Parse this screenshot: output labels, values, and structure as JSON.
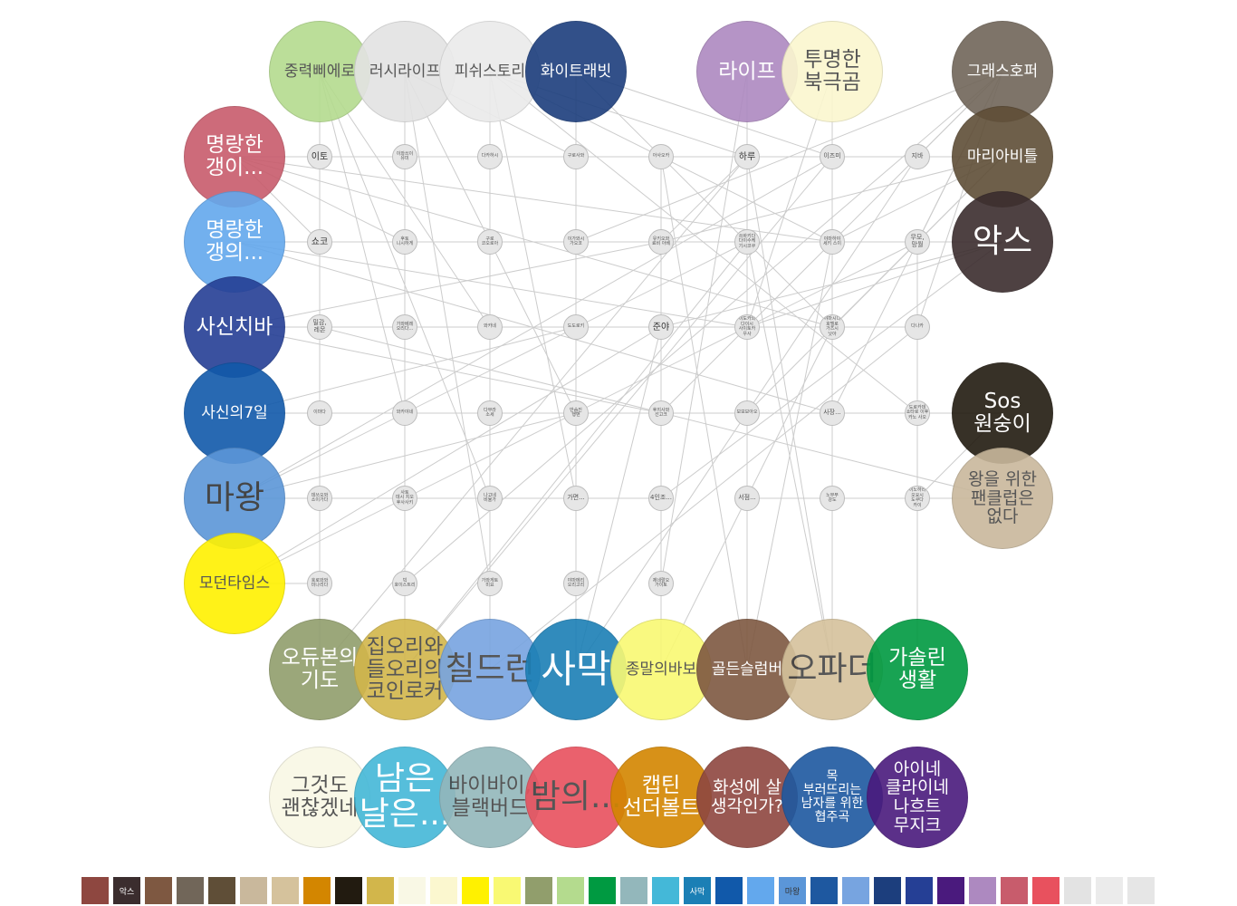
{
  "top_nodes": [
    {
      "label": "중력삐에로",
      "color": "#b4db8e",
      "text": "#444444",
      "size": "m"
    },
    {
      "label": "러시라이프",
      "color": "#e3e3e3",
      "text": "#444444",
      "size": "m"
    },
    {
      "label": "피쉬스토리",
      "color": "#ebebeb",
      "text": "#444444",
      "size": "m"
    },
    {
      "label": "화이트래빗",
      "color": "#1c3e7d",
      "text": "#ffffff",
      "size": "m"
    },
    {
      "label": "라이프",
      "color": "#ad89c0",
      "text": "#ffffff",
      "size": "l"
    },
    {
      "label": "투명한\n북극곰",
      "color": "#fbf7cf",
      "text": "#444444",
      "size": "l"
    },
    {
      "label": "그래스호퍼",
      "color": "#716659",
      "text": "#ffffff",
      "size": "m"
    }
  ],
  "left_nodes": [
    {
      "label": "명랑한\n갱이...",
      "color": "#c85c6c",
      "text": "#ffffff",
      "size": "l"
    },
    {
      "label": "명랑한\n갱의...",
      "color": "#63a8ed",
      "text": "#ffffff",
      "size": "l"
    },
    {
      "label": "사신치바",
      "color": "#253f95",
      "text": "#ffffff",
      "size": "l"
    },
    {
      "label": "사신의7일",
      "color": "#1159aa",
      "text": "#ffffff",
      "size": "m"
    },
    {
      "label": "마왕",
      "color": "#5b96d8",
      "text": "#333333",
      "size": "xl"
    },
    {
      "label": "모던타임스",
      "color": "#fff100",
      "text": "#444444",
      "size": "m"
    }
  ],
  "right_nodes": [
    {
      "label": "마리아비틀",
      "color": "#5f4e37",
      "text": "#ffffff",
      "size": "m"
    },
    {
      "label": "악스",
      "color": "#3b2d2e",
      "text": "#ffffff",
      "size": "xl"
    },
    {
      "label": "Sos\n원숭이",
      "color": "#221b10",
      "text": "#ffffff",
      "size": "l"
    },
    {
      "label": "왕을 위한\n팬클럽은\n없다",
      "color": "#c9b89c",
      "text": "#444444",
      "size": "m2"
    }
  ],
  "bottom_row1": [
    {
      "label": "오듀본의\n기도",
      "color": "#919e6c",
      "text": "#ffffff",
      "size": "l"
    },
    {
      "label": "집오리와\n들오리의\n코인로커",
      "color": "#d2b64b",
      "text": "#444444",
      "size": "l"
    },
    {
      "label": "칠드런",
      "color": "#77a4e0",
      "text": "#444444",
      "size": "xl"
    },
    {
      "label": "사막",
      "color": "#1b7fb5",
      "text": "#ffffff",
      "size": "xxl"
    },
    {
      "label": "종말의바보",
      "color": "#f9f973",
      "text": "#444444",
      "size": "m"
    },
    {
      "label": "골든슬럼버",
      "color": "#7e5841",
      "text": "#ffffff",
      "size": "m"
    },
    {
      "label": "오파더",
      "color": "#d5c29c",
      "text": "#444444",
      "size": "xl"
    },
    {
      "label": "가솔린\n생활",
      "color": "#009a41",
      "text": "#ffffff",
      "size": "l"
    }
  ],
  "bottom_row2": [
    {
      "label": "그것도\n괜찮겠네",
      "color": "#f9f8e5",
      "text": "#444444",
      "size": "l"
    },
    {
      "label": "남은\n날은...",
      "color": "#44b8d8",
      "text": "#ffffff",
      "size": "xl"
    },
    {
      "label": "바이바이,\n블랙버드",
      "color": "#93b7bb",
      "text": "#444444",
      "size": "l"
    },
    {
      "label": "밤의...",
      "color": "#e8515e",
      "text": "#444444",
      "size": "xl"
    },
    {
      "label": "캡틴\n선더볼트",
      "color": "#d38600",
      "text": "#ffffff",
      "size": "l"
    },
    {
      "label": "화성에 살\n생각인가?",
      "color": "#8e4740",
      "text": "#ffffff",
      "size": "m2"
    },
    {
      "label": "목\n부러뜨리는\n남자를 위한\n협주곡",
      "color": "#1e58a0",
      "text": "#ffffff",
      "size": "s"
    },
    {
      "label": "아이네\n클라이네\n나흐트\n무지크",
      "color": "#4a1a7d",
      "text": "#ffffff",
      "size": "m2"
    }
  ],
  "small_nodes": [
    {
      "label": "이토",
      "fs": "s1"
    },
    {
      "label": "이와쓰이\n유미",
      "fs": "s3"
    },
    {
      "label": "다카하시",
      "fs": "s3"
    },
    {
      "label": "구로사와",
      "fs": "s3"
    },
    {
      "label": "아사오카",
      "fs": "s3"
    },
    {
      "label": "하루",
      "fs": "s1"
    },
    {
      "label": "이즈미",
      "fs": "s2"
    },
    {
      "label": "지바",
      "fs": "s2"
    },
    {
      "label": "쇼코",
      "fs": "s1"
    },
    {
      "label": "후토\n니시하게",
      "fs": "s3"
    },
    {
      "label": "구로\n코오로아",
      "fs": "s3"
    },
    {
      "label": "이가와시\n가오코",
      "fs": "s3"
    },
    {
      "label": "유키오와\n료비 아베",
      "fs": "s3"
    },
    {
      "label": "쓰바키다\n다이수케\n기시코쿠",
      "fs": "s3"
    },
    {
      "label": "야마하야\n세키 스이",
      "fs": "s3"
    },
    {
      "label": "무모,\n망월",
      "fs": "s2"
    },
    {
      "label": "밀감,\n레몬",
      "fs": "s2"
    },
    {
      "label": "가와베레\n오리다...",
      "fs": "s3"
    },
    {
      "label": "와카네",
      "fs": "s3"
    },
    {
      "label": "도도로키",
      "fs": "s3"
    },
    {
      "label": "준야",
      "fs": "s1"
    },
    {
      "label": "이도카와\n다이시\n사이토카\n우사",
      "fs": "s3"
    },
    {
      "label": "야마시다\n호텔로\n가즈시\n낫아",
      "fs": "s3"
    },
    {
      "label": "다나카",
      "fs": "s3"
    },
    {
      "label": "이마다",
      "fs": "s3"
    },
    {
      "label": "와카야네",
      "fs": "s3"
    },
    {
      "label": "다무라\n소세",
      "fs": "s3"
    },
    {
      "label": "반숨진\n행맨",
      "fs": "s3"
    },
    {
      "label": "후지사와\n선고크",
      "fs": "s3"
    },
    {
      "label": "보보보아오",
      "fs": "s3"
    },
    {
      "label": "사장...",
      "fs": "s2"
    },
    {
      "label": "도로카데\n쇼타로 이후\n카노 사오",
      "fs": "s3"
    },
    {
      "label": "데쓰오와\n소이가다",
      "fs": "s3"
    },
    {
      "label": "사토\n데시 치오\n후사사키",
      "fs": "s3"
    },
    {
      "label": "나고네\n비율가",
      "fs": "s3"
    },
    {
      "label": "가면...",
      "fs": "s2"
    },
    {
      "label": "4인조...",
      "fs": "s2"
    },
    {
      "label": "서점...",
      "fs": "s2"
    },
    {
      "label": "노부부\n강도",
      "fs": "s3"
    },
    {
      "label": "이노하라\n오요시\n도쿠다\n카이",
      "fs": "s3"
    },
    {
      "label": "호로와와\n미나리다",
      "fs": "s3"
    },
    {
      "label": "빅\n호이스트리",
      "fs": "s3"
    },
    {
      "label": "가와게토\n미요",
      "fs": "s3"
    },
    {
      "label": "야마메리\n오리고리",
      "fs": "s3"
    },
    {
      "label": "제네랄오\n가이토",
      "fs": "s3"
    }
  ],
  "legend": [
    {
      "color": "#8e4740",
      "label": ""
    },
    {
      "color": "#3b2d2e",
      "label": "악스"
    },
    {
      "color": "#7e5841",
      "label": ""
    },
    {
      "color": "#716659",
      "label": ""
    },
    {
      "color": "#5f4e37",
      "label": ""
    },
    {
      "color": "#c9b89c",
      "label": ""
    },
    {
      "color": "#d5c29c",
      "label": ""
    },
    {
      "color": "#d38600",
      "label": ""
    },
    {
      "color": "#221b10",
      "label": ""
    },
    {
      "color": "#d2b64b",
      "label": ""
    },
    {
      "color": "#f9f8e5",
      "label": ""
    },
    {
      "color": "#fbf7cf",
      "label": ""
    },
    {
      "color": "#fff100",
      "label": ""
    },
    {
      "color": "#f9f973",
      "label": ""
    },
    {
      "color": "#919e6c",
      "label": ""
    },
    {
      "color": "#b4db8e",
      "label": ""
    },
    {
      "color": "#009a41",
      "label": ""
    },
    {
      "color": "#93b7bb",
      "label": ""
    },
    {
      "color": "#44b8d8",
      "label": ""
    },
    {
      "color": "#1b7fb5",
      "label": "사막"
    },
    {
      "color": "#1159aa",
      "label": ""
    },
    {
      "color": "#63a8ed",
      "label": ""
    },
    {
      "color": "#5b96d8",
      "label": "마왕"
    },
    {
      "color": "#1e58a0",
      "label": ""
    },
    {
      "color": "#77a4e0",
      "label": ""
    },
    {
      "color": "#1c3e7d",
      "label": ""
    },
    {
      "color": "#253f95",
      "label": ""
    },
    {
      "color": "#4a1a7d",
      "label": ""
    },
    {
      "color": "#ad89c0",
      "label": ""
    },
    {
      "color": "#c85c6c",
      "label": ""
    },
    {
      "color": "#e8515e",
      "label": ""
    },
    {
      "color": "#e3e3e3",
      "label": ""
    },
    {
      "color": "#ebebeb",
      "label": ""
    },
    {
      "color": "#e6e6e6",
      "label": ""
    }
  ],
  "links": [
    [
      "l0",
      "s0"
    ],
    [
      "l0",
      "s8"
    ],
    [
      "l0",
      "s9"
    ],
    [
      "l0",
      "s14"
    ],
    [
      "l0",
      "s7"
    ],
    [
      "l0",
      "s22"
    ],
    [
      "l1",
      "s8"
    ],
    [
      "l1",
      "s15"
    ],
    [
      "l1",
      "s21"
    ],
    [
      "l1",
      "s10"
    ],
    [
      "l1",
      "s30"
    ],
    [
      "l2",
      "s16"
    ],
    [
      "l2",
      "s12"
    ],
    [
      "l2",
      "s23"
    ],
    [
      "l2",
      "s28"
    ],
    [
      "l3",
      "s24"
    ],
    [
      "l3",
      "s19"
    ],
    [
      "l3",
      "s31"
    ],
    [
      "l3",
      "s26"
    ],
    [
      "l4",
      "s32"
    ],
    [
      "l4",
      "s33"
    ],
    [
      "l4",
      "s27"
    ],
    [
      "l4",
      "s36"
    ],
    [
      "l4",
      "s13"
    ],
    [
      "l4",
      "s6"
    ],
    [
      "l5",
      "s40"
    ],
    [
      "l5",
      "s20"
    ],
    [
      "l5",
      "s15"
    ],
    [
      "t0",
      "s0"
    ],
    [
      "t0",
      "s8"
    ],
    [
      "t0",
      "s25"
    ],
    [
      "t0",
      "s34"
    ],
    [
      "t0",
      "s18"
    ],
    [
      "t1",
      "s1"
    ],
    [
      "t1",
      "s9"
    ],
    [
      "t1",
      "s17"
    ],
    [
      "t1",
      "s42"
    ],
    [
      "t1",
      "s27"
    ],
    [
      "t1",
      "s3"
    ],
    [
      "t2",
      "s2"
    ],
    [
      "t2",
      "s10"
    ],
    [
      "t2",
      "s26"
    ],
    [
      "t2",
      "s35"
    ],
    [
      "t2",
      "s5"
    ],
    [
      "t2",
      "s14"
    ],
    [
      "t2",
      "s31"
    ],
    [
      "t3",
      "s3"
    ],
    [
      "t3",
      "s11"
    ],
    [
      "t3",
      "s19"
    ],
    [
      "t3",
      "s43"
    ],
    [
      "t3",
      "s6"
    ],
    [
      "t3",
      "s22"
    ],
    [
      "t4",
      "s5"
    ],
    [
      "t4",
      "s13"
    ],
    [
      "t4",
      "s29"
    ],
    [
      "t4",
      "s44"
    ],
    [
      "t5",
      "s6"
    ],
    [
      "t5",
      "s21"
    ],
    [
      "t5",
      "s38"
    ],
    [
      "t6",
      "s7"
    ],
    [
      "t6",
      "s15"
    ],
    [
      "t6",
      "s23"
    ],
    [
      "t6",
      "s30"
    ],
    [
      "t6",
      "s41"
    ],
    [
      "t6",
      "s11"
    ],
    [
      "t6",
      "s28"
    ],
    [
      "r0",
      "s7"
    ],
    [
      "r0",
      "s14"
    ],
    [
      "r0",
      "s22"
    ],
    [
      "r0",
      "s29"
    ],
    [
      "r0",
      "s12"
    ],
    [
      "r1",
      "s15"
    ],
    [
      "r1",
      "s21"
    ],
    [
      "r1",
      "s20"
    ],
    [
      "r1",
      "s36"
    ],
    [
      "r1",
      "s10"
    ],
    [
      "r2",
      "s31"
    ],
    [
      "r2",
      "s30"
    ],
    [
      "r2",
      "s39"
    ],
    [
      "r2",
      "s24"
    ],
    [
      "r3",
      "s39"
    ],
    [
      "r3",
      "s38"
    ],
    [
      "r3",
      "s37"
    ],
    [
      "r3",
      "s16"
    ],
    [
      "b0",
      "s40"
    ],
    [
      "b0",
      "s32"
    ],
    [
      "b0",
      "s16"
    ],
    [
      "b0",
      "s8"
    ],
    [
      "b0",
      "s0"
    ],
    [
      "b0",
      "s5"
    ],
    [
      "b1",
      "s41"
    ],
    [
      "b1",
      "s33"
    ],
    [
      "b1",
      "s25"
    ],
    [
      "b1",
      "s17"
    ],
    [
      "b1",
      "s9"
    ],
    [
      "b1",
      "s6"
    ],
    [
      "b1",
      "s13"
    ],
    [
      "b2",
      "s42"
    ],
    [
      "b2",
      "s34"
    ],
    [
      "b2",
      "s26"
    ],
    [
      "b2",
      "s18"
    ],
    [
      "b2",
      "s10"
    ],
    [
      "b2",
      "s2"
    ],
    [
      "b2",
      "s23"
    ],
    [
      "b3",
      "s43"
    ],
    [
      "b3",
      "s35"
    ],
    [
      "b3",
      "s27"
    ],
    [
      "b3",
      "s19"
    ],
    [
      "b3",
      "s11"
    ],
    [
      "b3",
      "s3"
    ],
    [
      "b3",
      "s20"
    ],
    [
      "b3",
      "s7"
    ],
    [
      "b4",
      "s44"
    ],
    [
      "b4",
      "s36"
    ],
    [
      "b4",
      "s28"
    ],
    [
      "b4",
      "s12"
    ],
    [
      "b4",
      "s22"
    ],
    [
      "b5",
      "s37"
    ],
    [
      "b5",
      "s29"
    ],
    [
      "b5",
      "s21"
    ],
    [
      "b5",
      "s4"
    ],
    [
      "b5",
      "s14"
    ],
    [
      "b6",
      "s38"
    ],
    [
      "b6",
      "s30"
    ],
    [
      "b6",
      "s13"
    ],
    [
      "b6",
      "s5"
    ],
    [
      "b7",
      "s39"
    ],
    [
      "b7",
      "s31"
    ],
    [
      "b7",
      "s23"
    ],
    [
      "b7",
      "s15"
    ],
    [
      "s0",
      "s8"
    ],
    [
      "s8",
      "s16"
    ],
    [
      "s16",
      "s24"
    ],
    [
      "s24",
      "s32"
    ],
    [
      "s32",
      "s40"
    ],
    [
      "s2",
      "s10"
    ],
    [
      "s10",
      "s18"
    ],
    [
      "s18",
      "s26"
    ],
    [
      "s26",
      "s34"
    ],
    [
      "s34",
      "s42"
    ],
    [
      "s3",
      "s11"
    ],
    [
      "s11",
      "s19"
    ],
    [
      "s19",
      "s27"
    ],
    [
      "s27",
      "s35"
    ],
    [
      "s35",
      "s43"
    ],
    [
      "s9",
      "s25"
    ],
    [
      "s17",
      "s33"
    ],
    [
      "s12",
      "s28"
    ],
    [
      "s20",
      "s36"
    ],
    [
      "s13",
      "s21"
    ],
    [
      "s29",
      "s37"
    ],
    [
      "s22",
      "s38"
    ],
    [
      "s6",
      "s14"
    ],
    [
      "s31",
      "s39"
    ],
    [
      "s1",
      "s17"
    ],
    [
      "s4",
      "s20"
    ],
    [
      "s5",
      "s12"
    ]
  ]
}
